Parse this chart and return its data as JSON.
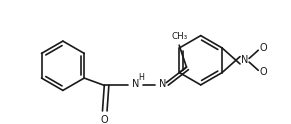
{
  "bg_color": "#ffffff",
  "line_color": "#1a1a1a",
  "lw": 1.2,
  "figsize": [
    2.91,
    1.24
  ],
  "dpi": 100,
  "fs": 7.0,
  "fs_small": 5.8,
  "xlim": [
    0,
    291
  ],
  "ylim": [
    0,
    124
  ]
}
